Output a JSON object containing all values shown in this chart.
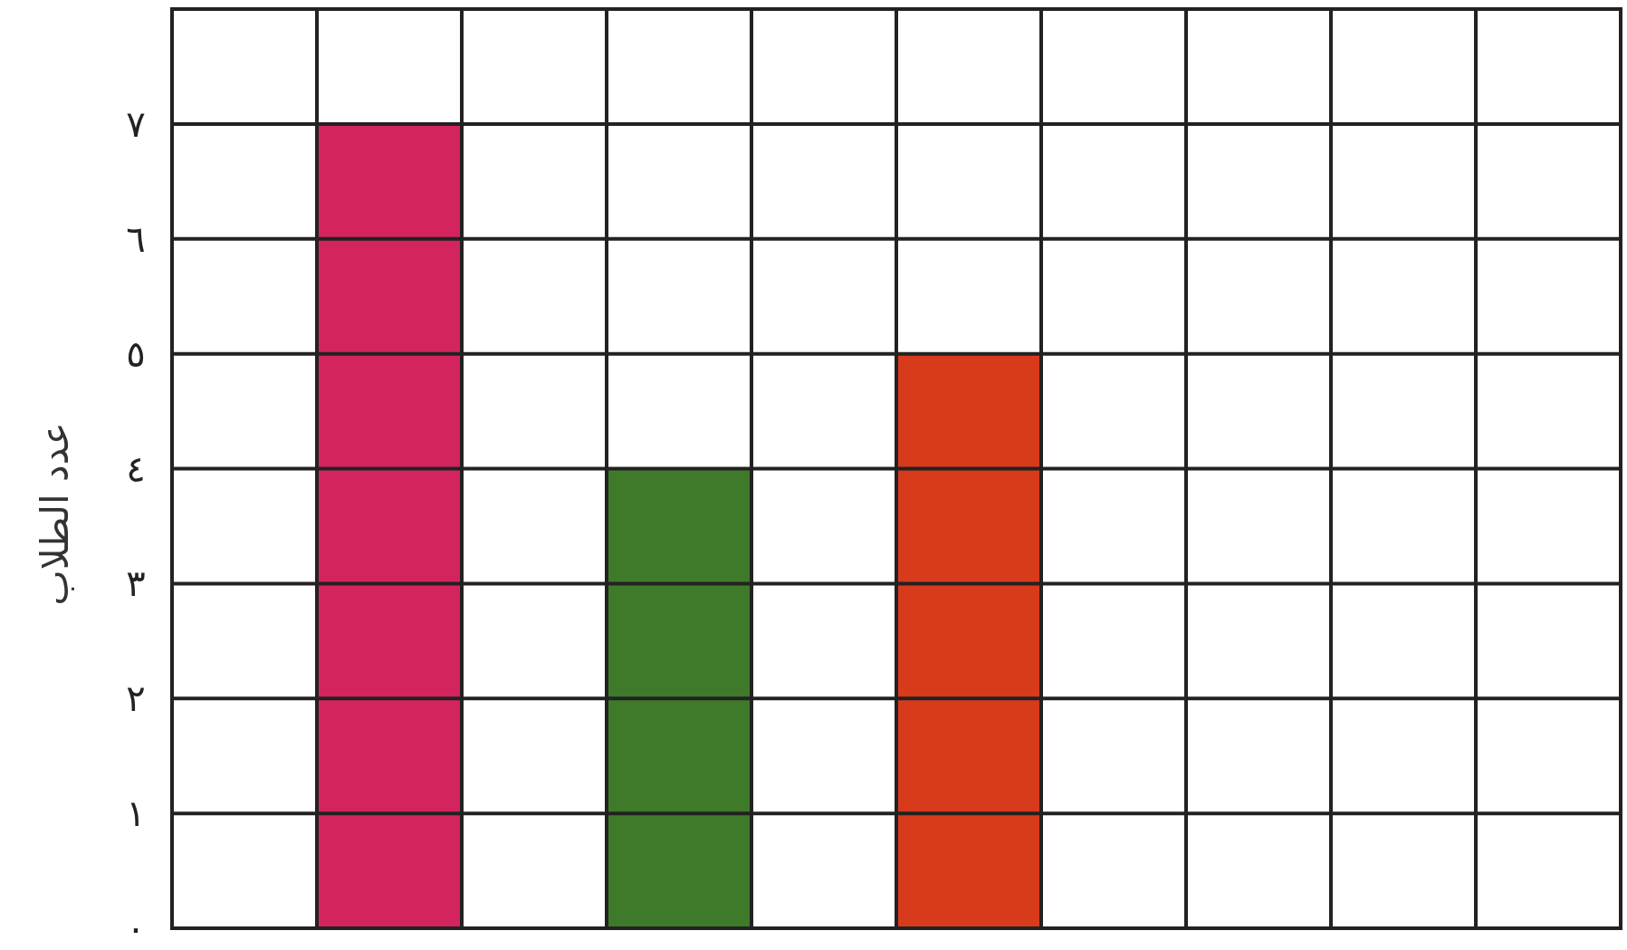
{
  "chart_data": {
    "type": "bar",
    "ylabel": "عدد الطلاب",
    "categories": [
      null,
      null,
      null,
      null,
      null,
      null,
      null,
      null,
      null,
      null
    ],
    "values": [
      null,
      7,
      null,
      4,
      null,
      5,
      null,
      null,
      null,
      null
    ],
    "colors": [
      null,
      "#d4245e",
      null,
      "#3f7a2a",
      null,
      "#d83a1c",
      null,
      null,
      null,
      null
    ],
    "ylim": [
      0,
      8
    ],
    "yticks": [
      {
        "value": 0,
        "label": "٠"
      },
      {
        "value": 1,
        "label": "١"
      },
      {
        "value": 2,
        "label": "٢"
      },
      {
        "value": 3,
        "label": "٣"
      },
      {
        "value": 4,
        "label": "٤"
      },
      {
        "value": 5,
        "label": "٥"
      },
      {
        "value": 6,
        "label": "٦"
      },
      {
        "value": 7,
        "label": "٧"
      }
    ],
    "grid": true
  }
}
